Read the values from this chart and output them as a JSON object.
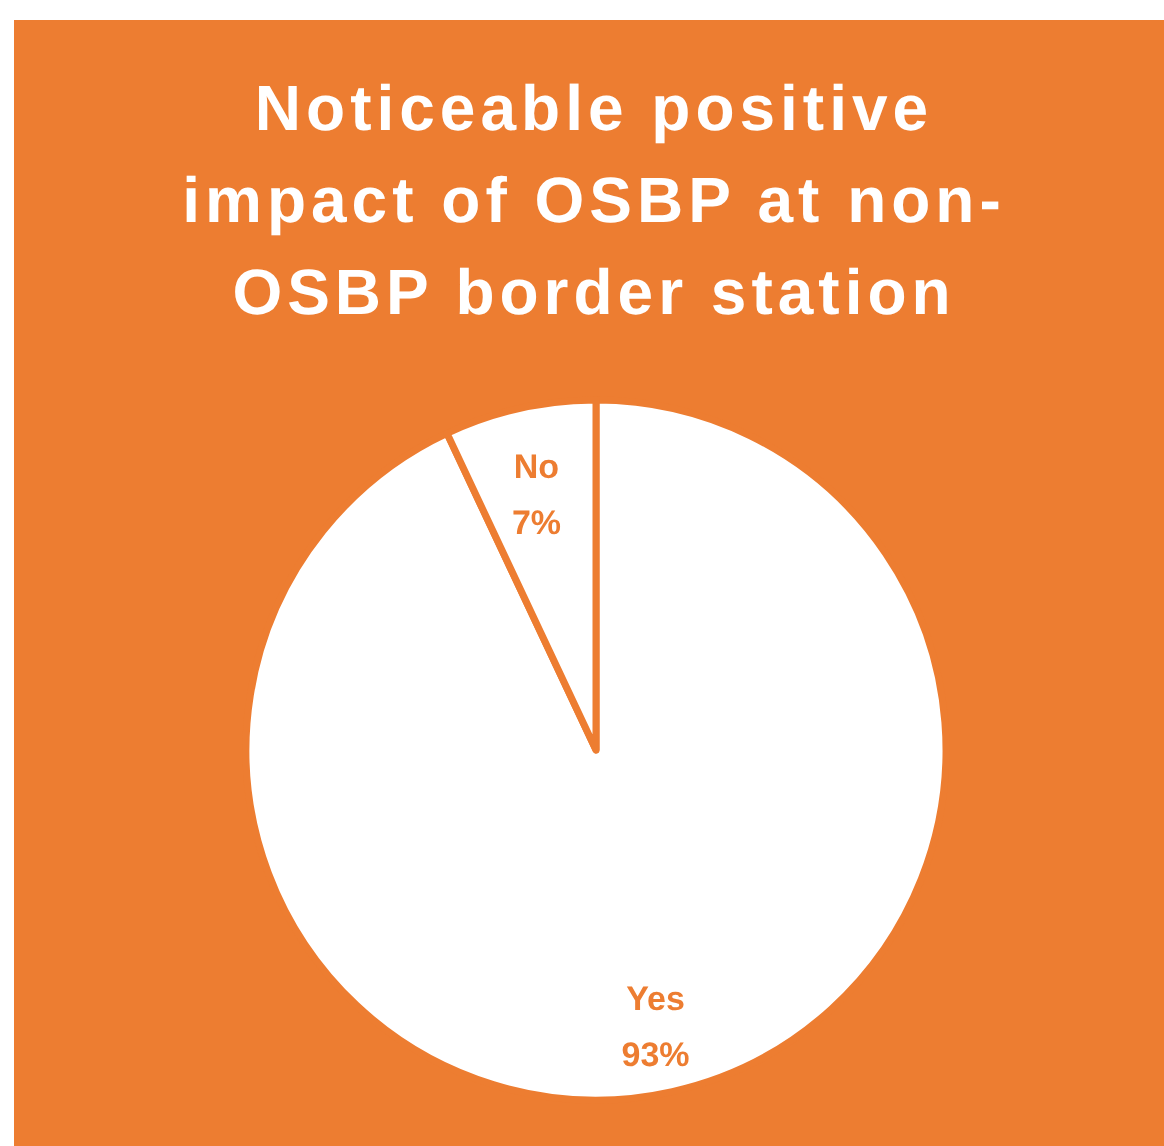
{
  "chart_data": {
    "type": "pie",
    "title": "Noticeable positive impact of OSBP at non-OSBP border station",
    "categories": [
      "Yes",
      "No"
    ],
    "values": [
      93,
      7
    ],
    "colors": [
      "#ffffff",
      "#ffffff"
    ],
    "value_labels": [
      "93%",
      "7%"
    ]
  }
}
